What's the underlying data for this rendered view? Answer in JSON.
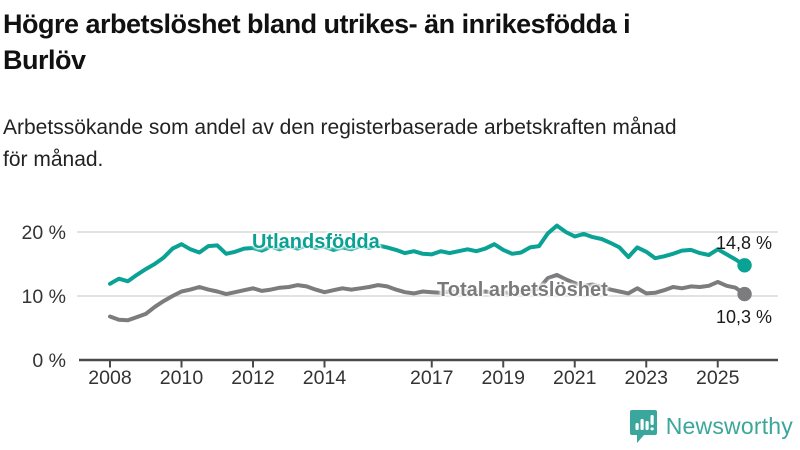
{
  "title": {
    "line1": "Högre arbetslöshet bland utrikes- än inrikesfödda i",
    "line2": "Burlöv"
  },
  "subtitle": {
    "line1": "Arbetssökande som andel av den registerbaserade arbetskraften månad",
    "line2": "för månad."
  },
  "brand": {
    "name": "Newsworthy",
    "icon": "bar-chart-speech-bubble-icon",
    "color": "#3ba69b"
  },
  "colors": {
    "foreign_born_line": "#0aa294",
    "total_line": "#7c7c7e",
    "gridline": "#d8d8d8",
    "axis": "#4a4a4a",
    "axis_text": "#333333",
    "end_label_text": "#1a1a1a"
  },
  "chart_data": {
    "type": "line",
    "title": "Högre arbetslöshet bland utrikes- än inrikesfödda i Burlöv",
    "subtitle": "Arbetssökande som andel av den registerbaserade arbetskraften månad för månad.",
    "ylabel": "",
    "xlabel": "",
    "ylim": [
      0,
      22
    ],
    "xlim": [
      2007.1,
      2026.7
    ],
    "grid": "horizontal",
    "legend_position": "inline-labels",
    "yticks": [
      {
        "value": 0,
        "label": "0 %"
      },
      {
        "value": 10,
        "label": "10 %"
      },
      {
        "value": 20,
        "label": "20 %"
      }
    ],
    "xticks": [
      {
        "value": 2008,
        "label": "2008"
      },
      {
        "value": 2010,
        "label": "2010"
      },
      {
        "value": 2012,
        "label": "2012"
      },
      {
        "value": 2014,
        "label": "2014"
      },
      {
        "value": 2017,
        "label": "2017"
      },
      {
        "value": 2019,
        "label": "2019"
      },
      {
        "value": 2021,
        "label": "2021"
      },
      {
        "value": 2023,
        "label": "2023"
      },
      {
        "value": 2025,
        "label": "2025"
      }
    ],
    "x": [
      2008,
      2008.25,
      2008.5,
      2008.75,
      2009,
      2009.25,
      2009.5,
      2009.75,
      2010,
      2010.25,
      2010.5,
      2010.75,
      2011,
      2011.25,
      2011.5,
      2011.75,
      2012,
      2012.25,
      2012.5,
      2012.75,
      2013,
      2013.25,
      2013.5,
      2013.75,
      2014,
      2014.25,
      2014.5,
      2014.75,
      2015,
      2015.25,
      2015.5,
      2015.75,
      2016,
      2016.25,
      2016.5,
      2016.75,
      2017,
      2017.25,
      2017.5,
      2017.75,
      2018,
      2018.25,
      2018.5,
      2018.75,
      2019,
      2019.25,
      2019.5,
      2019.75,
      2020,
      2020.25,
      2020.5,
      2020.75,
      2021,
      2021.25,
      2021.5,
      2021.75,
      2022,
      2022.25,
      2022.5,
      2022.75,
      2023,
      2023.25,
      2023.5,
      2023.75,
      2024,
      2024.25,
      2024.5,
      2024.75,
      2025,
      2025.25,
      2025.5,
      2025.75
    ],
    "series": [
      {
        "name": "Utlandsfödda",
        "color": "#0aa294",
        "end_label": "14,8 %",
        "end_value": 14.8,
        "values": [
          11.9,
          12.7,
          12.3,
          13.3,
          14.2,
          15.0,
          16.0,
          17.4,
          18.1,
          17.3,
          16.8,
          17.8,
          17.9,
          16.6,
          16.9,
          17.4,
          17.5,
          17.1,
          17.7,
          17.3,
          17.8,
          17.4,
          17.9,
          17.5,
          17.7,
          17.2,
          17.6,
          17.3,
          17.8,
          17.5,
          17.9,
          17.6,
          17.2,
          16.7,
          17.0,
          16.6,
          16.5,
          17.0,
          16.7,
          17.0,
          17.3,
          17.0,
          17.4,
          18.1,
          17.2,
          16.6,
          16.8,
          17.6,
          17.8,
          19.8,
          21.0,
          20.0,
          19.3,
          19.7,
          19.2,
          18.9,
          18.3,
          17.6,
          16.1,
          17.6,
          16.9,
          15.9,
          16.2,
          16.6,
          17.1,
          17.2,
          16.7,
          16.4,
          17.3,
          16.5,
          15.7,
          14.8
        ]
      },
      {
        "name": "Total arbetslöshet",
        "color": "#7c7c7e",
        "end_label": "10,3 %",
        "end_value": 10.3,
        "values": [
          6.8,
          6.3,
          6.2,
          6.7,
          7.2,
          8.3,
          9.2,
          10.0,
          10.7,
          11.0,
          11.4,
          11.0,
          10.7,
          10.3,
          10.6,
          10.9,
          11.2,
          10.8,
          11.0,
          11.3,
          11.4,
          11.7,
          11.5,
          11.0,
          10.6,
          10.9,
          11.2,
          11.0,
          11.2,
          11.4,
          11.7,
          11.5,
          11.0,
          10.6,
          10.4,
          10.7,
          10.6,
          10.5,
          10.7,
          10.6,
          10.8,
          10.6,
          10.7,
          10.5,
          10.6,
          10.4,
          10.6,
          10.8,
          11.2,
          12.8,
          13.3,
          12.6,
          12.0,
          11.6,
          11.8,
          11.4,
          11.0,
          10.7,
          10.4,
          11.2,
          10.4,
          10.5,
          10.9,
          11.4,
          11.2,
          11.5,
          11.4,
          11.6,
          12.2,
          11.6,
          11.3,
          10.3
        ]
      }
    ]
  }
}
